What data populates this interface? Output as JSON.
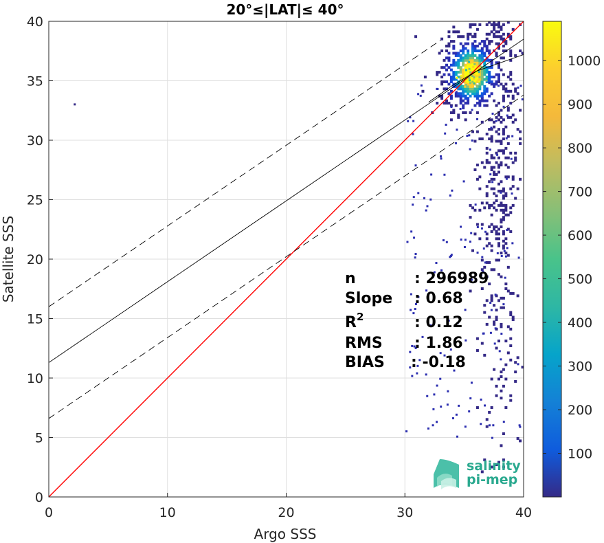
{
  "chart_data": {
    "type": "scatter",
    "title": "20°≤|LAT|≤ 40°",
    "xlabel": "Argo SSS",
    "ylabel": "Satellite SSS",
    "xlim": [
      0,
      40
    ],
    "ylim": [
      0,
      40
    ],
    "xticks": [
      "0",
      "10",
      "20",
      "30",
      "40"
    ],
    "yticks": [
      "0",
      "5",
      "10",
      "15",
      "20",
      "25",
      "30",
      "35",
      "40"
    ],
    "grid": true,
    "density": {
      "core": [
        35.5,
        35.5
      ],
      "x_range": [
        30,
        40
      ],
      "y_range": [
        0,
        40
      ],
      "colormap": "parula"
    },
    "lines": [
      {
        "name": "1:1",
        "color": "#ff0000",
        "style": "solid",
        "x": [
          0,
          40
        ],
        "y": [
          0,
          40
        ]
      },
      {
        "name": "fit",
        "color": "#000000",
        "style": "solid",
        "x": [
          0,
          40
        ],
        "y": [
          11.3,
          38.5
        ]
      },
      {
        "name": "fit_upper",
        "color": "#000000",
        "style": "dashed",
        "x": [
          0,
          33
        ],
        "y": [
          16,
          38.4
        ]
      },
      {
        "name": "fit_lower",
        "color": "#000000",
        "style": "dashed",
        "x": [
          0,
          40
        ],
        "y": [
          6.6,
          33.8
        ]
      },
      {
        "name": "fit_curve",
        "color": "#000000",
        "style": "solid",
        "x": [
          32,
          34,
          36,
          38,
          40
        ],
        "y": [
          33.2,
          34.6,
          35.8,
          36.5,
          37.2
        ]
      }
    ],
    "stats": [
      {
        "label": "n",
        "value": ": 296989"
      },
      {
        "label": "Slope",
        "value": ": 0.68"
      },
      {
        "label": "R",
        "sup": "2",
        "value": ": 0.12"
      },
      {
        "label": "RMS",
        "value": ": 1.86"
      },
      {
        "label": "BIAS",
        "value": ": -0.18"
      }
    ],
    "colorbar": {
      "range": [
        0,
        1090
      ],
      "ticks": [
        "100",
        "200",
        "300",
        "400",
        "500",
        "600",
        "700",
        "800",
        "900",
        "1000"
      ]
    }
  },
  "logo": {
    "line1": "salinity",
    "line2": "pi-mep"
  }
}
